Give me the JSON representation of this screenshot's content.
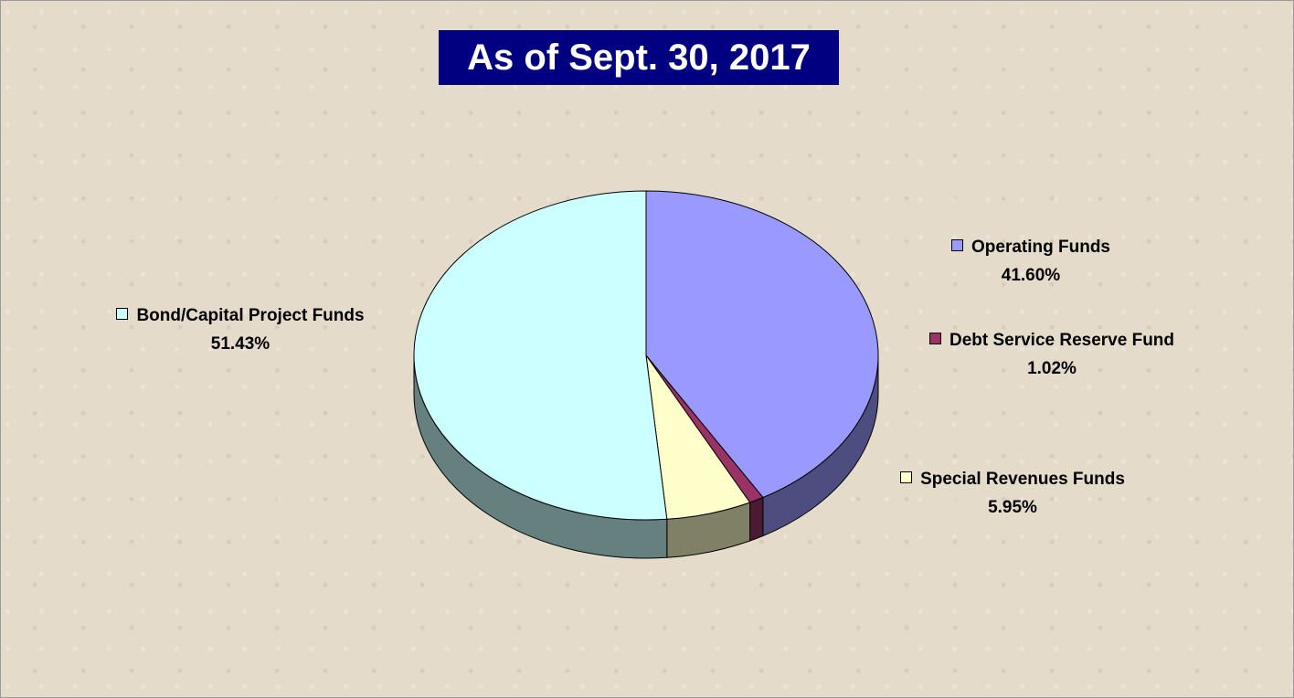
{
  "chart_data": {
    "type": "pie3d",
    "title": "As of Sept. 30, 2017",
    "categories": [
      "Operating Funds",
      "Debt Service Reserve Fund",
      "Special Revenues Funds",
      "Bond/Capital Project Funds"
    ],
    "values": [
      41.6,
      1.02,
      5.95,
      51.43
    ],
    "value_labels": [
      "41.60%",
      "1.02%",
      "5.95%",
      "51.43%"
    ],
    "colors": [
      "#9999ff",
      "#993366",
      "#ffffcc",
      "#ccffff"
    ]
  }
}
